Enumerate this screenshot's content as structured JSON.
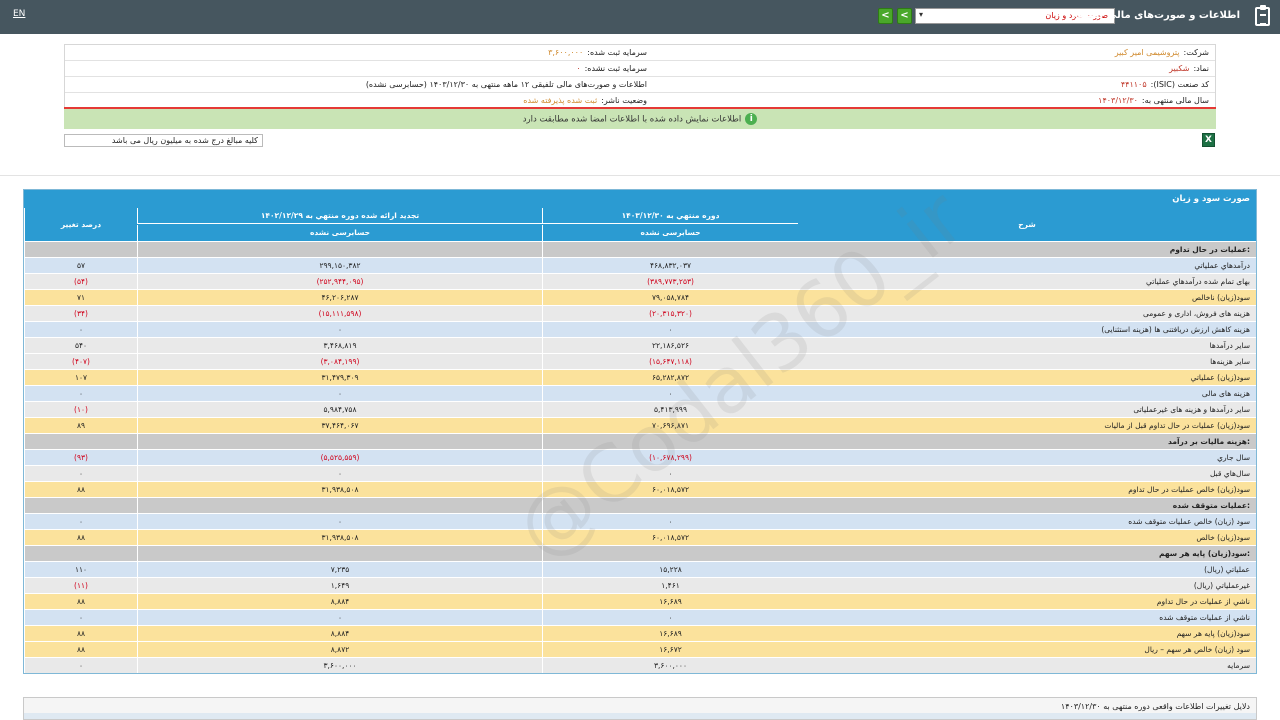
{
  "topbar": {
    "lang": "EN",
    "title": "اطلاعات و صورت‌های مالی تلفیقی",
    "report_select": "صورت سود و زیان"
  },
  "info": {
    "company_label": "شرکت:",
    "company_value": "پتروشیمی امیر کبیر",
    "symbol_label": "نماد:",
    "symbol_value": "شکبیر",
    "isic_label": "کد صنعت (ISIC):",
    "isic_value": "۴۴۱۱۰۵",
    "fiscal_label": "سال مالی منتهی به:",
    "fiscal_value": "۱۴۰۳/۱۲/۳۰",
    "reg_capital_label": "سرمایه ثبت شده:",
    "reg_capital_value": "۳,۶۰۰,۰۰۰",
    "unreg_capital_label": "سرمایه ثبت نشده:",
    "unreg_capital_value": "۰",
    "statement_desc": "اطلاعات و صورت‌های مالی تلفیقی ۱۲ ماهه منتهی به ۱۴۰۳/۱۲/۳۰ (حسابرسی نشده)",
    "publisher_label": "وضعیت ناشر:",
    "publisher_value": "ثبت شده پذیرفته شده"
  },
  "notice": "اطلاعات نمایش داده شده با اطلاعات امضا شده مطابقت دارد",
  "amount_note": "کلیه مبالغ درج شده به میلیون ریال می باشد",
  "table": {
    "title": "صورت سود و زیان",
    "col_desc": "شرح",
    "col_current": "دوره منتهي به ۱۴۰۳/۱۲/۳۰",
    "col_current_sub": "حسابرسی نشده",
    "col_prev": "تجدید ارائه شده دوره منتهي به ۱۴۰۲/۱۲/۲۹",
    "col_prev_sub": "حسابرسی نشده",
    "col_change": "درصد تغییر",
    "rows": [
      {
        "type": "section",
        "label": "عملیات در حال تداوم:",
        "current": "",
        "prev": "",
        "change": ""
      },
      {
        "type": "blue",
        "label": "درآمدهاي عملياتي",
        "current": "۴۶۸,۸۳۲,۰۳۷",
        "prev": "۲۹۹,۱۵۰,۳۸۲",
        "change": "۵۷"
      },
      {
        "type": "grey",
        "label": "بهاى تمام شده درآمدهاي عملياتي",
        "current": "(۳۸۹,۷۷۳,۲۵۳)",
        "prev": "(۲۵۲,۹۴۴,۰۹۵)",
        "change": "(۵۴)"
      },
      {
        "type": "yellow",
        "label": "سود(زيان) ناخالص",
        "current": "۷۹,۰۵۸,۷۸۴",
        "prev": "۴۶,۲۰۶,۲۸۷",
        "change": "۷۱"
      },
      {
        "type": "grey",
        "label": "هزينه هاى فروش، ادارى و عمومى",
        "current": "(۲۰,۳۱۵,۳۲۰)",
        "prev": "(۱۵,۱۱۱,۵۹۸)",
        "change": "(۳۴)"
      },
      {
        "type": "blue",
        "label": "هزینه کاهش ارزش دریافتنی ها (هزینه استثنایی)",
        "current": "۰",
        "prev": "۰",
        "change": "۰"
      },
      {
        "type": "grey",
        "label": "ساير درآمدها",
        "current": "۲۲,۱۸۶,۵۲۶",
        "prev": "۳,۴۶۸,۸۱۹",
        "change": "۵۴۰"
      },
      {
        "type": "grey",
        "label": "سایر هزینه‌ها",
        "current": "(۱۵,۶۴۷,۱۱۸)",
        "prev": "(۳,۰۸۴,۱۹۹)",
        "change": "(۴۰۷)"
      },
      {
        "type": "yellow",
        "label": "سود(زيان) عملياتي",
        "current": "۶۵,۲۸۲,۸۷۲",
        "prev": "۳۱,۴۷۹,۳۰۹",
        "change": "۱۰۷"
      },
      {
        "type": "blue",
        "label": "هزينه هاى مالى",
        "current": "۰",
        "prev": "۰",
        "change": "۰"
      },
      {
        "type": "grey",
        "label": "ساير درآمدها و هزينه هاى غيرعملياتى",
        "current": "۵,۴۱۳,۹۹۹",
        "prev": "۵,۹۸۴,۷۵۸",
        "change": "(۱۰)"
      },
      {
        "type": "yellow",
        "label": "سود(زيان) عمليات در حال تداوم قبل از ماليات",
        "current": "۷۰,۶۹۶,۸۷۱",
        "prev": "۳۷,۴۶۴,۰۶۷",
        "change": "۸۹"
      },
      {
        "type": "section",
        "label": "هزینه مالیات بر درآمد:",
        "current": "",
        "prev": "",
        "change": ""
      },
      {
        "type": "blue",
        "label": "سال جاري",
        "current": "(۱۰,۶۷۸,۲۹۹)",
        "prev": "(۵,۵۲۵,۵۵۹)",
        "change": "(۹۳)"
      },
      {
        "type": "grey",
        "label": "سال‌هاي قبل",
        "current": "۰",
        "prev": "۰",
        "change": "۰"
      },
      {
        "type": "yellow",
        "label": "سود(زيان) خالص عمليات در حال تداوم",
        "current": "۶۰,۰۱۸,۵۷۲",
        "prev": "۳۱,۹۳۸,۵۰۸",
        "change": "۸۸"
      },
      {
        "type": "section",
        "label": "عملیات متوقف شده:",
        "current": "",
        "prev": "",
        "change": ""
      },
      {
        "type": "blue",
        "label": "سود (زيان) خالص عمليات متوقف شده",
        "current": "۰",
        "prev": "۰",
        "change": "۰"
      },
      {
        "type": "yellow",
        "label": "سود(زيان) خالص",
        "current": "۶۰,۰۱۸,۵۷۲",
        "prev": "۳۱,۹۳۸,۵۰۸",
        "change": "۸۸"
      },
      {
        "type": "section",
        "label": "سود(زیان) پایه هر سهم:",
        "current": "",
        "prev": "",
        "change": ""
      },
      {
        "type": "blue",
        "label": "عملياتي (ريال)",
        "current": "۱۵,۲۲۸",
        "prev": "۷,۲۳۵",
        "change": "۱۱۰"
      },
      {
        "type": "grey",
        "label": "غيرعملياتي (ريال)",
        "current": "۱,۴۶۱",
        "prev": "۱,۶۴۹",
        "change": "(۱۱)"
      },
      {
        "type": "yellow",
        "label": "ناشي از عمليات در حال تداوم",
        "current": "۱۶,۶۸۹",
        "prev": "۸,۸۸۴",
        "change": "۸۸"
      },
      {
        "type": "blue",
        "label": "ناشي از عمليات متوقف شده",
        "current": "۰",
        "prev": "۰",
        "change": "۰"
      },
      {
        "type": "yellow",
        "label": "سود(زيان) پايه هر سهم",
        "current": "۱۶,۶۸۹",
        "prev": "۸,۸۸۴",
        "change": "۸۸"
      },
      {
        "type": "yellow",
        "label": "سود (زيان) خالص هر سهم – ريال",
        "current": "۱۶,۶۷۲",
        "prev": "۸,۸۷۲",
        "change": "۸۸"
      },
      {
        "type": "grey",
        "label": "سرمايه",
        "current": "۳,۶۰۰,۰۰۰",
        "prev": "۳,۶۰۰,۰۰۰",
        "change": "۰"
      }
    ]
  },
  "watermark": "@Codal360_ir",
  "reason_title": "دلایل تغییرات اطلاعات واقعی دوره منتهی به ۱۴۰۳/۱۲/۳۰"
}
